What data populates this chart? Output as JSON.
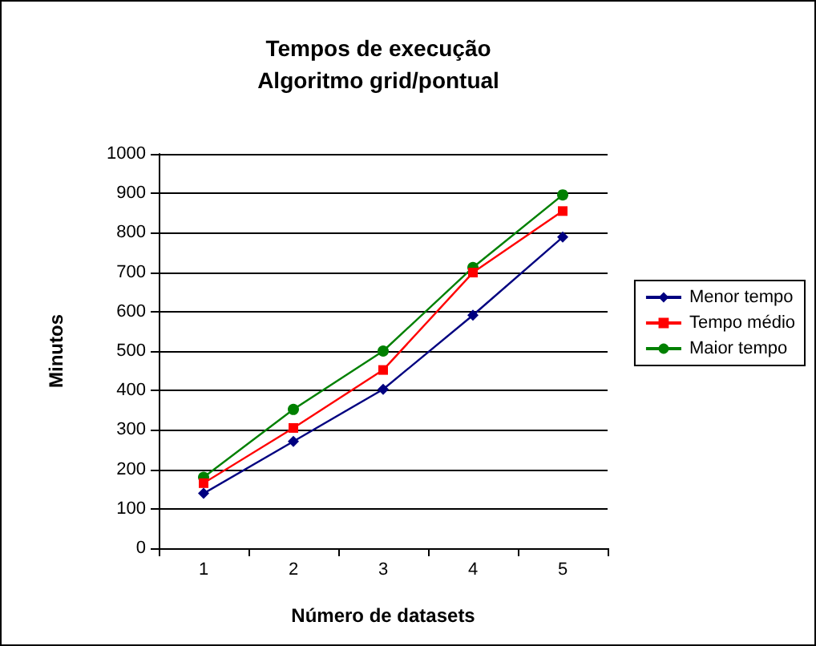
{
  "chart_data": {
    "type": "line",
    "title": "Tempos de execução\nAlgoritmo grid/pontual",
    "xlabel": "Número de datasets",
    "ylabel": "Minutos",
    "categories": [
      "1",
      "2",
      "3",
      "4",
      "5"
    ],
    "series": [
      {
        "name": "Menor tempo",
        "color": "#000080",
        "marker": "diamond",
        "values": [
          139,
          271,
          403,
          591,
          789
        ]
      },
      {
        "name": "Tempo médio",
        "color": "#ff0000",
        "marker": "square",
        "values": [
          165,
          305,
          452,
          699,
          855
        ]
      },
      {
        "name": "Maior tempo",
        "color": "#008000",
        "marker": "circle",
        "values": [
          180,
          352,
          500,
          712,
          896
        ]
      }
    ],
    "ylim": [
      0,
      1000
    ],
    "yticks": [
      0,
      100,
      200,
      300,
      400,
      500,
      600,
      700,
      800,
      900,
      1000
    ],
    "grid": "y",
    "legend": "right"
  }
}
